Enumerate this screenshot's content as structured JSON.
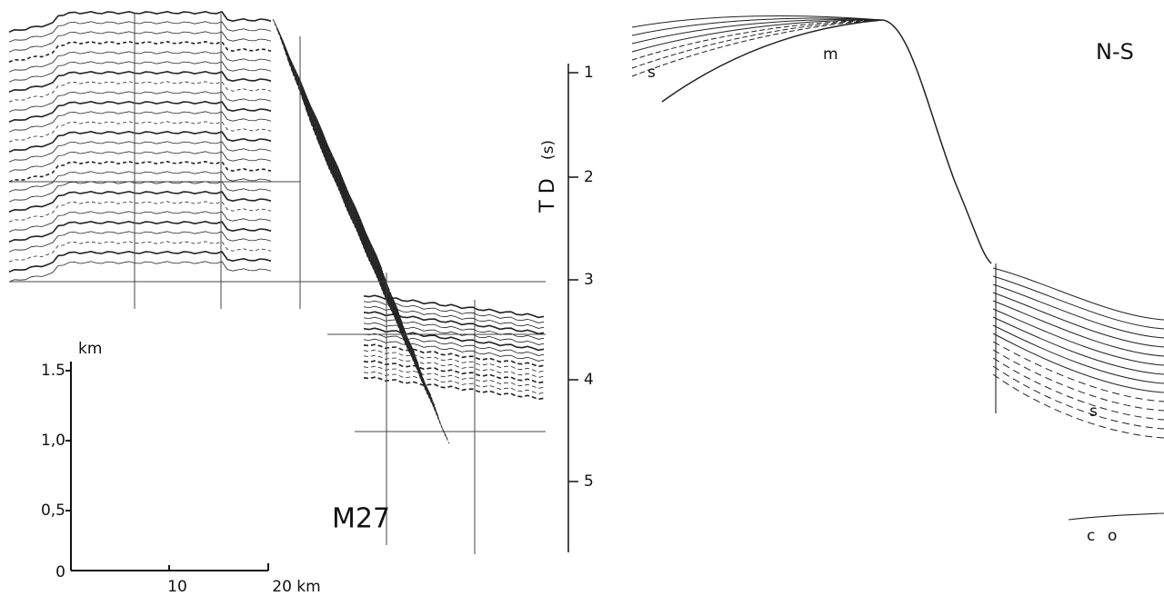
{
  "seismic_profile": {
    "label": "M27"
  },
  "scale_bar": {
    "unit_label": "km",
    "vertical_labels": [
      "1.5",
      "1,0",
      "0,5",
      "0"
    ],
    "horizontal_labels": [
      "10",
      "20 km"
    ]
  },
  "time_axis": {
    "label": "T D",
    "unit": "(s)",
    "ticks": [
      "1",
      "2",
      "3",
      "4",
      "5"
    ]
  },
  "interpretation": {
    "direction": "N-S",
    "labels": [
      "s",
      "m",
      "s",
      "c",
      "o"
    ]
  }
}
